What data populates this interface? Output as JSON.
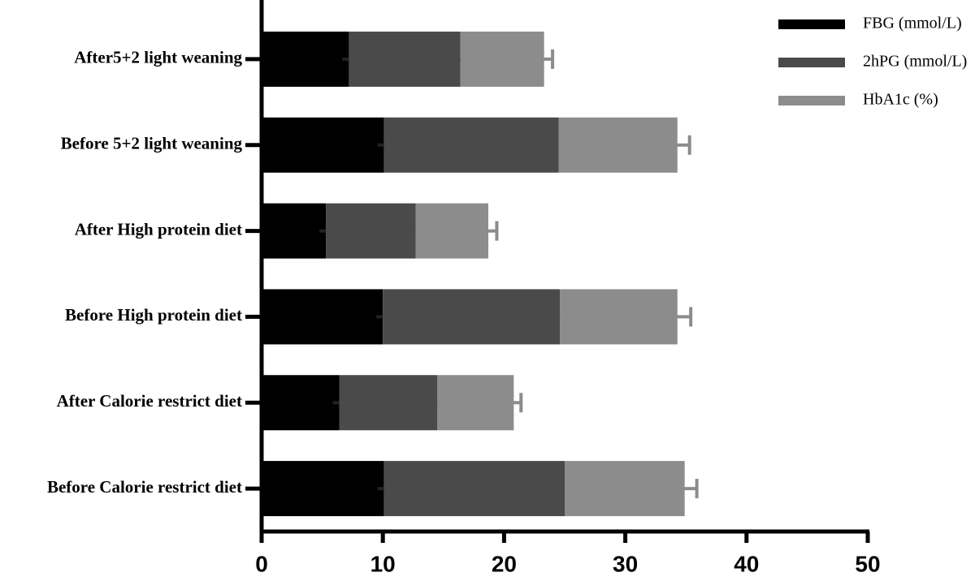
{
  "chart_data": {
    "type": "stacked-barh",
    "categories": [
      "After5+2 light weaning",
      "Before 5+2 light weaning",
      "After High protein diet",
      "Before High protein diet",
      "After Calorie restrict diet",
      "Before Calorie restrict diet"
    ],
    "series": [
      {
        "name": "FBG (mmol/L)",
        "color": "#000000",
        "values": [
          7.2,
          10.1,
          5.3,
          10.0,
          6.4,
          10.1
        ],
        "errors": [
          0.7,
          1.4,
          0.7,
          1.3,
          0.7,
          1.3
        ]
      },
      {
        "name": "2hPG (mmol/L)",
        "color": "#4a4a4a",
        "values": [
          9.2,
          14.4,
          7.4,
          14.6,
          8.1,
          14.9
        ],
        "errors": [
          1.5,
          2.1,
          1.5,
          2.1,
          1.5,
          2.1
        ]
      },
      {
        "name": "HbA1c (%)",
        "color": "#8c8c8c",
        "values": [
          6.9,
          9.8,
          6.0,
          9.7,
          6.3,
          9.9
        ],
        "errors": [
          0.7,
          1.0,
          0.7,
          1.1,
          0.6,
          1.0
        ]
      }
    ],
    "xlim": [
      0,
      50
    ],
    "xticks": [
      0,
      10,
      20,
      30,
      40,
      50
    ],
    "legend": "upper right"
  }
}
